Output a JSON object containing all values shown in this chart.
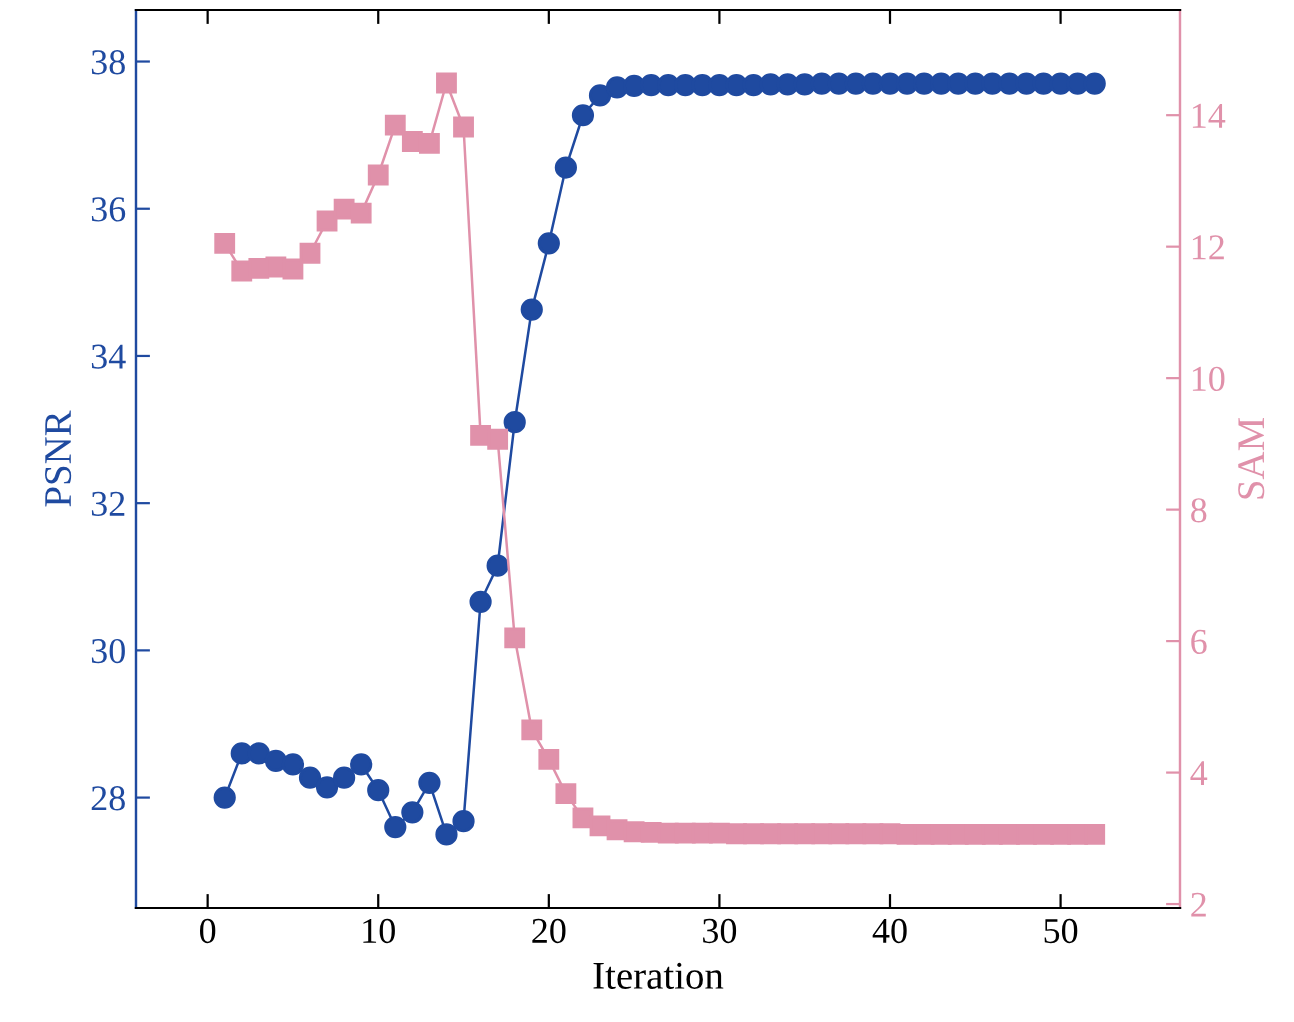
{
  "chart_data": {
    "type": "line",
    "xlabel": "Iteration",
    "ylabel": "PSNR",
    "y2label": "SAM",
    "x": [
      1,
      2,
      3,
      4,
      5,
      6,
      7,
      8,
      9,
      10,
      11,
      12,
      13,
      14,
      15,
      16,
      17,
      18,
      19,
      20,
      21,
      22,
      23,
      24,
      25,
      26,
      27,
      28,
      29,
      30,
      31,
      32,
      33,
      34,
      35,
      36,
      37,
      38,
      39,
      40,
      41,
      42,
      43,
      44,
      45,
      46,
      47,
      48,
      49,
      50,
      51,
      52
    ],
    "series": [
      {
        "name": null,
        "color": "#1f4aa0",
        "marker": "circle",
        "values": [
          28.0,
          28.6,
          28.6,
          28.5,
          28.45,
          28.27,
          28.14,
          28.27,
          28.45,
          28.1,
          27.6,
          27.8,
          28.2,
          27.5,
          27.68,
          30.66,
          31.15,
          33.1,
          34.63,
          35.53,
          36.56,
          37.27,
          37.54,
          37.65,
          37.67,
          37.68,
          37.68,
          37.68,
          37.68,
          37.68,
          37.68,
          37.68,
          37.69,
          37.69,
          37.69,
          37.7,
          37.7,
          37.7,
          37.7,
          37.7,
          37.7,
          37.7,
          37.7,
          37.7,
          37.7,
          37.7,
          37.7,
          37.7,
          37.7,
          37.7,
          37.7,
          37.7
        ]
      },
      {
        "name": null,
        "color": "#e091aa",
        "marker": "square",
        "axis": "y2",
        "values": [
          12.05,
          11.63,
          11.67,
          11.69,
          11.66,
          11.9,
          12.39,
          12.57,
          12.51,
          13.09,
          13.85,
          13.6,
          13.57,
          14.49,
          13.82,
          9.13,
          9.07,
          6.05,
          4.65,
          4.2,
          3.68,
          3.31,
          3.19,
          3.13,
          3.1,
          3.09,
          3.08,
          3.08,
          3.08,
          3.08,
          3.07,
          3.07,
          3.07,
          3.07,
          3.07,
          3.07,
          3.07,
          3.07,
          3.07,
          3.07,
          3.06,
          3.06,
          3.06,
          3.06,
          3.06,
          3.06,
          3.06,
          3.06,
          3.06,
          3.06,
          3.06,
          3.06
        ]
      }
    ],
    "xlim": [
      -4.2,
      57
    ],
    "xticks": [
      0,
      10,
      20,
      30,
      40,
      50
    ],
    "ylim": [
      26.5,
      38.7
    ],
    "yticks": [
      28,
      30,
      32,
      34,
      36,
      38
    ],
    "y2lim": [
      1.94,
      15.6
    ],
    "y2ticks": [
      2,
      4,
      6,
      8,
      10,
      12,
      14
    ],
    "grid": false,
    "legend": false,
    "line_style": "solid"
  }
}
